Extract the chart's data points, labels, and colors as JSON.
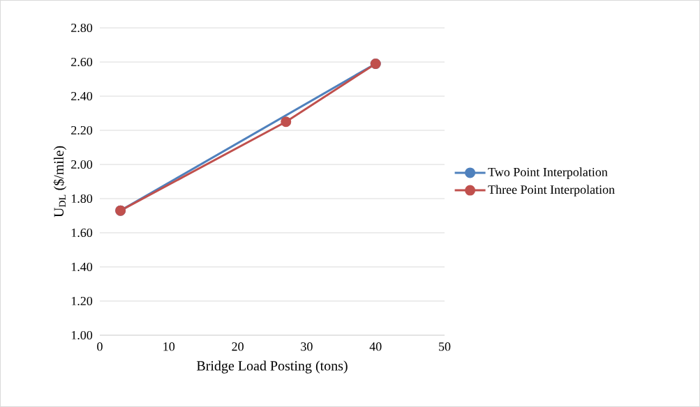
{
  "chart_data": {
    "type": "line",
    "xlabel": "Bridge Load Posting (tons)",
    "ylabel": "U$_{DL}$  ($/mile)",
    "xlim": [
      0,
      50
    ],
    "xticks": [
      0,
      10,
      20,
      30,
      40,
      50
    ],
    "ylim": [
      1.0,
      2.8
    ],
    "yticks": [
      {
        "value": 1.0,
        "label": "1.00"
      },
      {
        "value": 1.2,
        "label": "1.20"
      },
      {
        "value": 1.4,
        "label": "1.40"
      },
      {
        "value": 1.6,
        "label": "1.60"
      },
      {
        "value": 1.8,
        "label": "1.80"
      },
      {
        "value": 2.0,
        "label": "2.00"
      },
      {
        "value": 2.2,
        "label": "2.20"
      },
      {
        "value": 2.4,
        "label": "2.40"
      },
      {
        "value": 2.6,
        "label": "2.60"
      },
      {
        "value": 2.8,
        "label": "2.80"
      }
    ],
    "grid": "y",
    "legend": "right",
    "marker": "circle",
    "line_style": "solid",
    "series": [
      {
        "name": "Two Point Interpolation",
        "color": "#4f81bd",
        "x": [
          3,
          40
        ],
        "values": [
          1.73,
          2.59
        ]
      },
      {
        "name": "Three Point Interpolation",
        "color": "#c0504d",
        "x": [
          3,
          27,
          40
        ],
        "values": [
          1.73,
          2.25,
          2.59
        ]
      }
    ]
  }
}
